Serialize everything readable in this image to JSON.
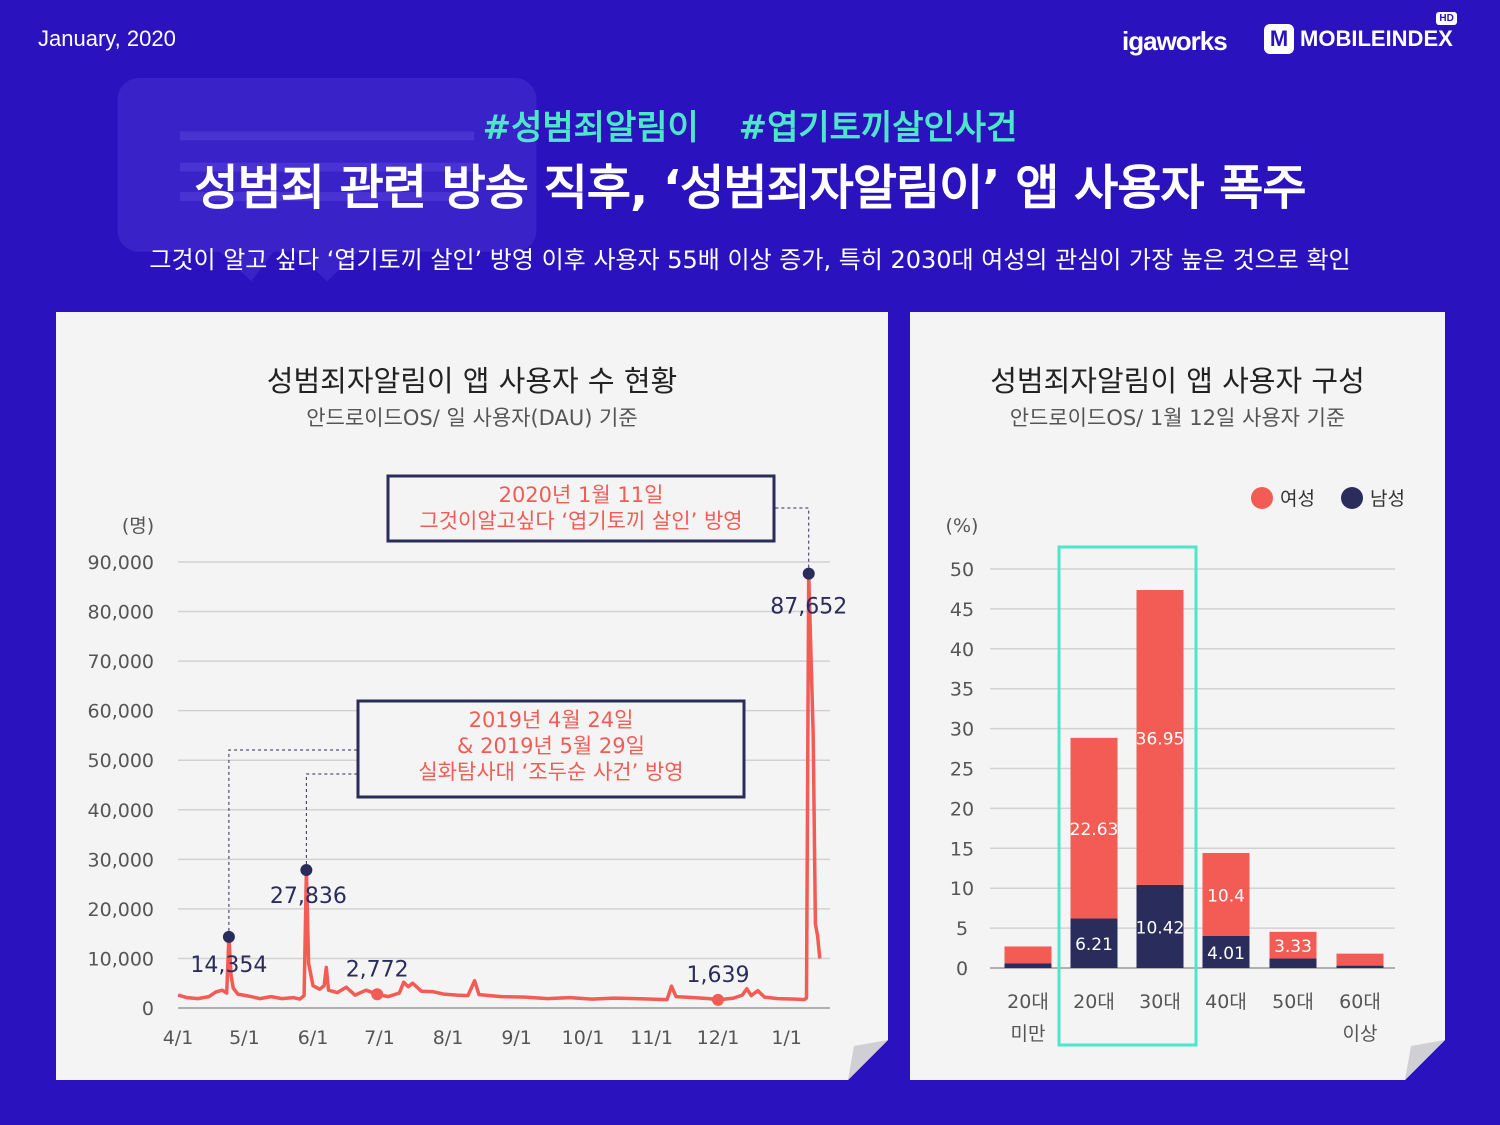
{
  "header": {
    "date": "January, 2020",
    "logo_igaworks": "igaworks",
    "logo_mobileindex": "MOBILEINDEX",
    "logo_hd": "HD",
    "logo_m": "M"
  },
  "hero": {
    "hashtags": "#성범죄알림이 #엽기토끼살인사건",
    "headline": "성범죄 관련 방송 직후, ‘성범죄자알림이’ 앱 사용자 폭주",
    "subhead": "그것이 알고 싶다 ‘엽기토끼 살인’ 방영 이후 사용자 55배 이상 증가, 특히 2030대 여성의 관심이 가장 높은 것으로 확인"
  },
  "colors": {
    "background": "#2b12bf",
    "accent": "#4ee6c8",
    "female": "#f25c54",
    "male": "#2a2d5c",
    "line": "#f25c54"
  },
  "chart_data": [
    {
      "type": "line",
      "title": "성범죄자알림이 앱 사용자 수 현황",
      "subtitle": "안드로이드OS/ 일 사용자(DAU) 기준",
      "ylabel": "(명)",
      "ylim": [
        0,
        90000
      ],
      "yticks": [
        "0",
        "10,000",
        "20,000",
        "30,000",
        "40,000",
        "50,000",
        "60,000",
        "70,000",
        "80,000",
        "90,000"
      ],
      "xticks": [
        "4/1",
        "5/1",
        "6/1",
        "7/1",
        "8/1",
        "9/1",
        "10/1",
        "11/1",
        "12/1",
        "1/1"
      ],
      "series": [
        {
          "points": [
            [
              "2019-04-01",
              2600
            ],
            [
              "2019-04-05",
              2100
            ],
            [
              "2019-04-10",
              1900
            ],
            [
              "2019-04-15",
              2300
            ],
            [
              "2019-04-18",
              3200
            ],
            [
              "2019-04-21",
              3600
            ],
            [
              "2019-04-23",
              3000
            ],
            [
              "2019-04-24",
              14354
            ],
            [
              "2019-04-25",
              6500
            ],
            [
              "2019-04-26",
              4000
            ],
            [
              "2019-04-28",
              2800
            ],
            [
              "2019-05-03",
              2400
            ],
            [
              "2019-05-08",
              1900
            ],
            [
              "2019-05-13",
              2300
            ],
            [
              "2019-05-18",
              1900
            ],
            [
              "2019-05-23",
              2100
            ],
            [
              "2019-05-26",
              1800
            ],
            [
              "2019-05-28",
              2500
            ],
            [
              "2019-05-29",
              27836
            ],
            [
              "2019-05-30",
              9000
            ],
            [
              "2019-06-01",
              4500
            ],
            [
              "2019-06-04",
              3800
            ],
            [
              "2019-06-06",
              4500
            ],
            [
              "2019-06-07",
              8200
            ],
            [
              "2019-06-08",
              3600
            ],
            [
              "2019-06-12",
              3100
            ],
            [
              "2019-06-16",
              4200
            ],
            [
              "2019-06-20",
              2600
            ],
            [
              "2019-06-25",
              3600
            ],
            [
              "2019-06-30",
              2772
            ],
            [
              "2019-07-05",
              2300
            ],
            [
              "2019-07-10",
              3000
            ],
            [
              "2019-07-12",
              5200
            ],
            [
              "2019-07-14",
              4300
            ],
            [
              "2019-07-16",
              5000
            ],
            [
              "2019-07-20",
              3400
            ],
            [
              "2019-07-25",
              3300
            ],
            [
              "2019-07-30",
              2800
            ],
            [
              "2019-08-05",
              2600
            ],
            [
              "2019-08-10",
              2500
            ],
            [
              "2019-08-13",
              5500
            ],
            [
              "2019-08-15",
              2700
            ],
            [
              "2019-08-25",
              2300
            ],
            [
              "2019-09-05",
              2200
            ],
            [
              "2019-09-15",
              1900
            ],
            [
              "2019-09-25",
              2100
            ],
            [
              "2019-10-05",
              1800
            ],
            [
              "2019-10-15",
              2000
            ],
            [
              "2019-10-25",
              1900
            ],
            [
              "2019-11-01",
              1800
            ],
            [
              "2019-11-08",
              1700
            ],
            [
              "2019-11-10",
              4400
            ],
            [
              "2019-11-12",
              2300
            ],
            [
              "2019-11-20",
              2100
            ],
            [
              "2019-11-27",
              1900
            ],
            [
              "2019-12-01",
              1639
            ],
            [
              "2019-12-08",
              2000
            ],
            [
              "2019-12-12",
              2600
            ],
            [
              "2019-12-14",
              3900
            ],
            [
              "2019-12-16",
              2500
            ],
            [
              "2019-12-19",
              3500
            ],
            [
              "2019-12-22",
              2200
            ],
            [
              "2019-12-28",
              1900
            ],
            [
              "2020-01-05",
              1800
            ],
            [
              "2020-01-09",
              1700
            ],
            [
              "2020-01-10",
              2000
            ],
            [
              "2020-01-11",
              87652
            ],
            [
              "2020-01-13",
              55000
            ],
            [
              "2020-01-14",
              17000
            ],
            [
              "2020-01-15",
              14500
            ],
            [
              "2020-01-16",
              10000
            ]
          ]
        }
      ],
      "markers": [
        {
          "x": "2019-04-24",
          "y": 14354,
          "label": "14,354"
        },
        {
          "x": "2019-05-29",
          "y": 27836,
          "label": "27,836"
        },
        {
          "x": "2019-06-30",
          "y": 2772,
          "label": "2,772"
        },
        {
          "x": "2019-12-01",
          "y": 1639,
          "label": "1,639"
        },
        {
          "x": "2020-01-11",
          "y": 87652,
          "label": "87,652"
        }
      ],
      "annotations": [
        {
          "lines": [
            "2020년 1월 11일",
            "그것이알고싶다 ‘엽기토끼 살인’ 방영"
          ]
        },
        {
          "lines": [
            "2019년 4월 24일",
            "& 2019년 5월 29일",
            "실화탐사대 ‘조두순 사건’ 방영"
          ]
        }
      ]
    },
    {
      "type": "bar",
      "stacked": true,
      "title": "성범죄자알림이 앱 사용자 구성",
      "subtitle": "안드로이드OS/ 1월 12일 사용자 기준",
      "ylabel": "(%)",
      "ylim": [
        0,
        50
      ],
      "yticks": [
        "0",
        "5",
        "10",
        "15",
        "20",
        "25",
        "30",
        "35",
        "40",
        "45",
        "50"
      ],
      "categories": [
        [
          "20대",
          "미만"
        ],
        [
          "20대"
        ],
        [
          "30대"
        ],
        [
          "40대"
        ],
        [
          "50대"
        ],
        [
          "60대",
          "이상"
        ]
      ],
      "series": [
        {
          "name": "남성",
          "values": [
            0.6,
            6.21,
            10.42,
            4.01,
            1.2,
            0.3
          ],
          "labels": [
            "",
            "6.21",
            "10.42",
            "4.01",
            "",
            ""
          ]
        },
        {
          "name": "여성",
          "values": [
            2.1,
            22.63,
            36.95,
            10.4,
            3.33,
            1.5
          ],
          "labels": [
            "",
            "22.63",
            "36.95",
            "10.4",
            "3.33",
            ""
          ]
        }
      ],
      "legend": [
        "여성",
        "남성"
      ],
      "highlight": [
        "20대",
        "30대"
      ]
    }
  ]
}
